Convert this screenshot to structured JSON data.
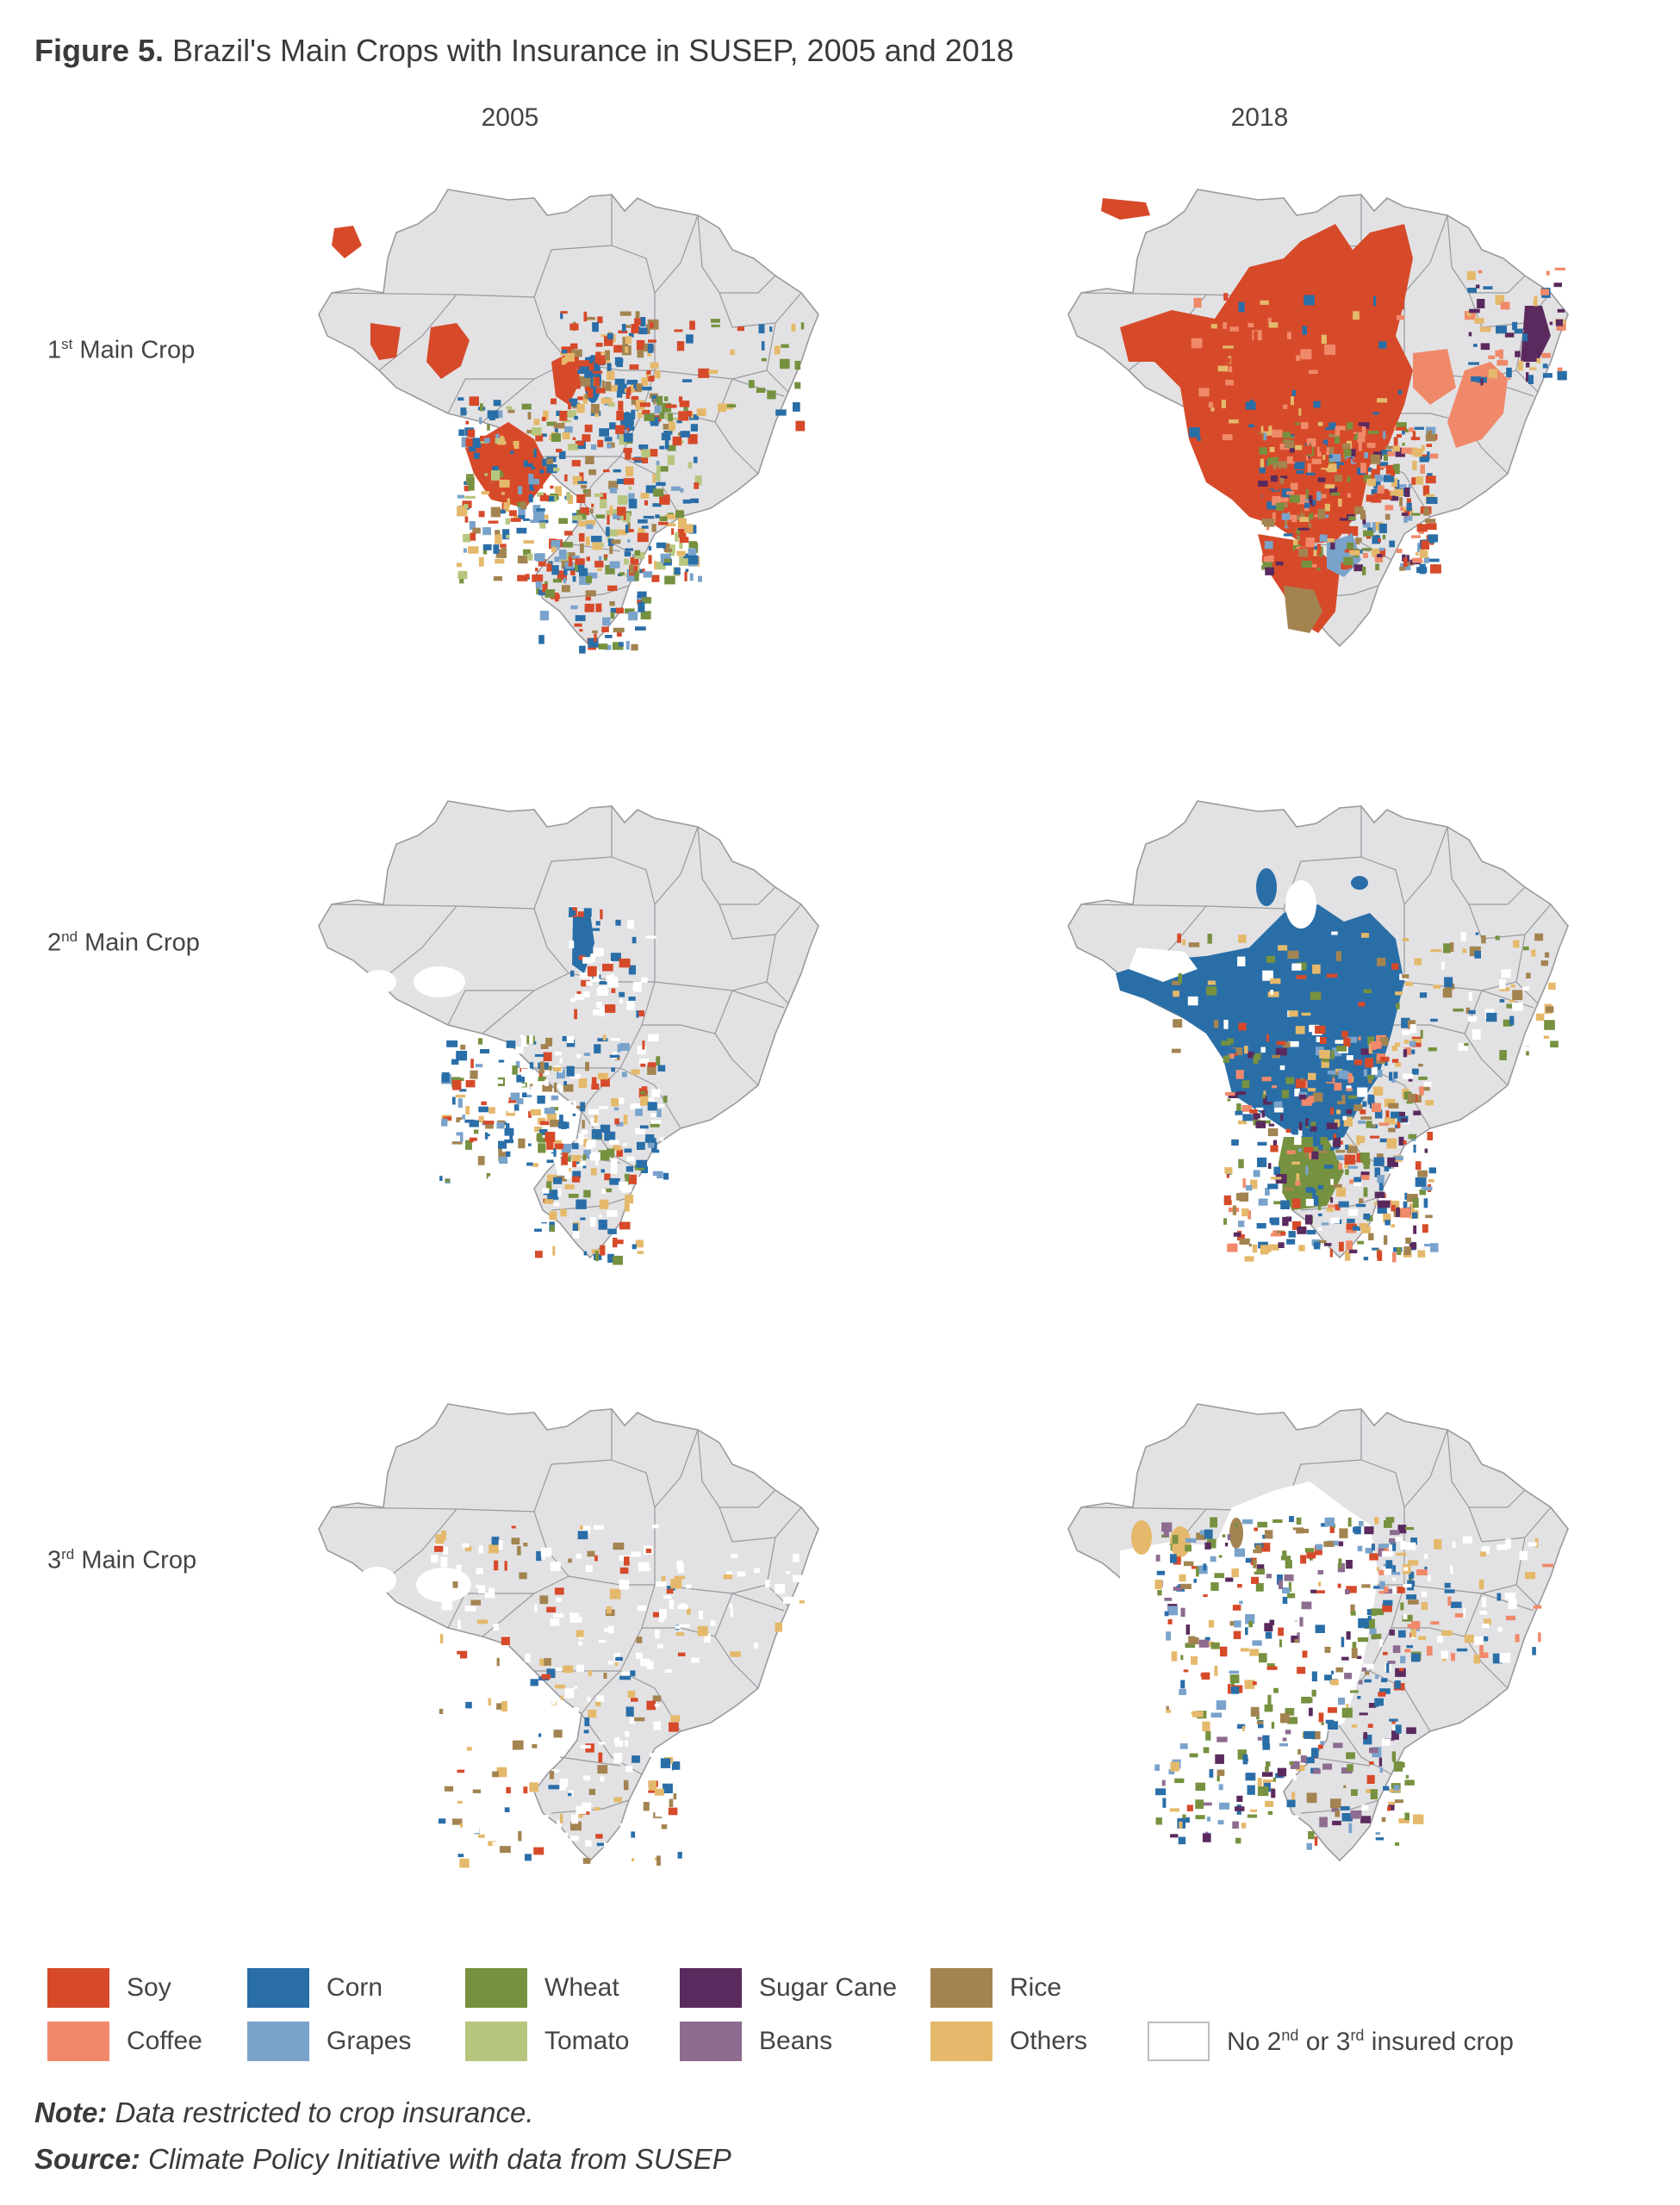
{
  "figure": {
    "number": "Figure 5.",
    "title": "Brazil's Main Crops with Insurance in SUSEP, 2005 and 2018"
  },
  "columns": [
    "2005",
    "2018"
  ],
  "rows": [
    {
      "prefix": "1",
      "sup": "st",
      "label": " Main Crop"
    },
    {
      "prefix": "2",
      "sup": "nd",
      "label": " Main Crop"
    },
    {
      "prefix": "3",
      "sup": "rd",
      "label": " Main Crop"
    }
  ],
  "colors": {
    "land": "#e2e2e4",
    "border": "#9a9a9e",
    "soy": "#d64a2a",
    "coffee": "#f0896a",
    "corn": "#2a6ea8",
    "grapes": "#7aa3cb",
    "wheat": "#76913f",
    "tomato": "#b7c67f",
    "sugar_cane": "#5a2a5e",
    "beans": "#8d6c90",
    "rice": "#a38451",
    "others": "#e5b96b",
    "none": "#ffffff"
  },
  "legend": {
    "row1": [
      {
        "label": "Soy",
        "color": "#d64a2a"
      },
      {
        "label": "Corn",
        "color": "#2a6ea8"
      },
      {
        "label": "Wheat",
        "color": "#76913f"
      },
      {
        "label": "Sugar Cane",
        "color": "#5a2a5e"
      },
      {
        "label": "Rice",
        "color": "#a38451"
      }
    ],
    "row2": [
      {
        "label": "Coffee",
        "color": "#f0896a"
      },
      {
        "label": "Grapes",
        "color": "#7aa3cb"
      },
      {
        "label": "Tomato",
        "color": "#b7c67f"
      },
      {
        "label": "Beans",
        "color": "#8d6c90"
      },
      {
        "label": "Others",
        "color": "#e5b96b"
      }
    ],
    "none_item": {
      "pre": "No 2",
      "sup1": "nd",
      "mid": " or 3",
      "sup2": "rd",
      "post": " insured crop"
    }
  },
  "note": {
    "label": "Note:",
    "text": " Data restricted to crop insurance."
  },
  "source": {
    "label": "Source:",
    "text": " Climate Policy Initiative with data from SUSEP"
  }
}
